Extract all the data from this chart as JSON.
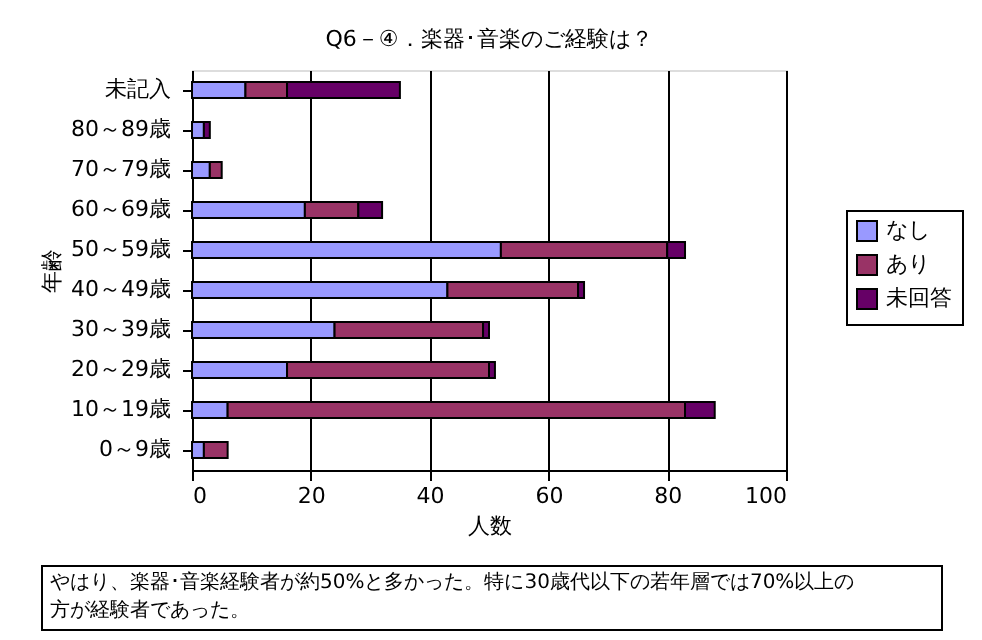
{
  "chart_data": {
    "type": "bar",
    "orientation": "horizontal",
    "stacked": true,
    "title": "Q6－④．楽器･音楽のご経験は？",
    "xlabel": "人数",
    "ylabel": "年齢",
    "categories": [
      "未記入",
      "80～89歳",
      "70～79歳",
      "60～69歳",
      "50～59歳",
      "40～49歳",
      "30～39歳",
      "20～29歳",
      "10～19歳",
      "0～9歳"
    ],
    "series": [
      {
        "name": "なし",
        "color": "#9999ff",
        "values": [
          9,
          2,
          3,
          19,
          52,
          43,
          24,
          16,
          6,
          2
        ]
      },
      {
        "name": "あり",
        "color": "#993366",
        "values": [
          7,
          0,
          2,
          9,
          28,
          22,
          25,
          34,
          77,
          4
        ]
      },
      {
        "name": "未回答",
        "color": "#660066",
        "values": [
          19,
          1,
          0,
          4,
          3,
          1,
          1,
          1,
          5,
          0
        ]
      }
    ],
    "xlim": [
      0,
      100
    ],
    "xticks": [
      0,
      20,
      40,
      60,
      80,
      100
    ],
    "grid": "x",
    "legend": "right",
    "annotations": [
      "やはり、楽器･音楽経験者が約50%と多かった。特に30歳代以下の若年層では70%以上の方が経験者であった。"
    ]
  }
}
